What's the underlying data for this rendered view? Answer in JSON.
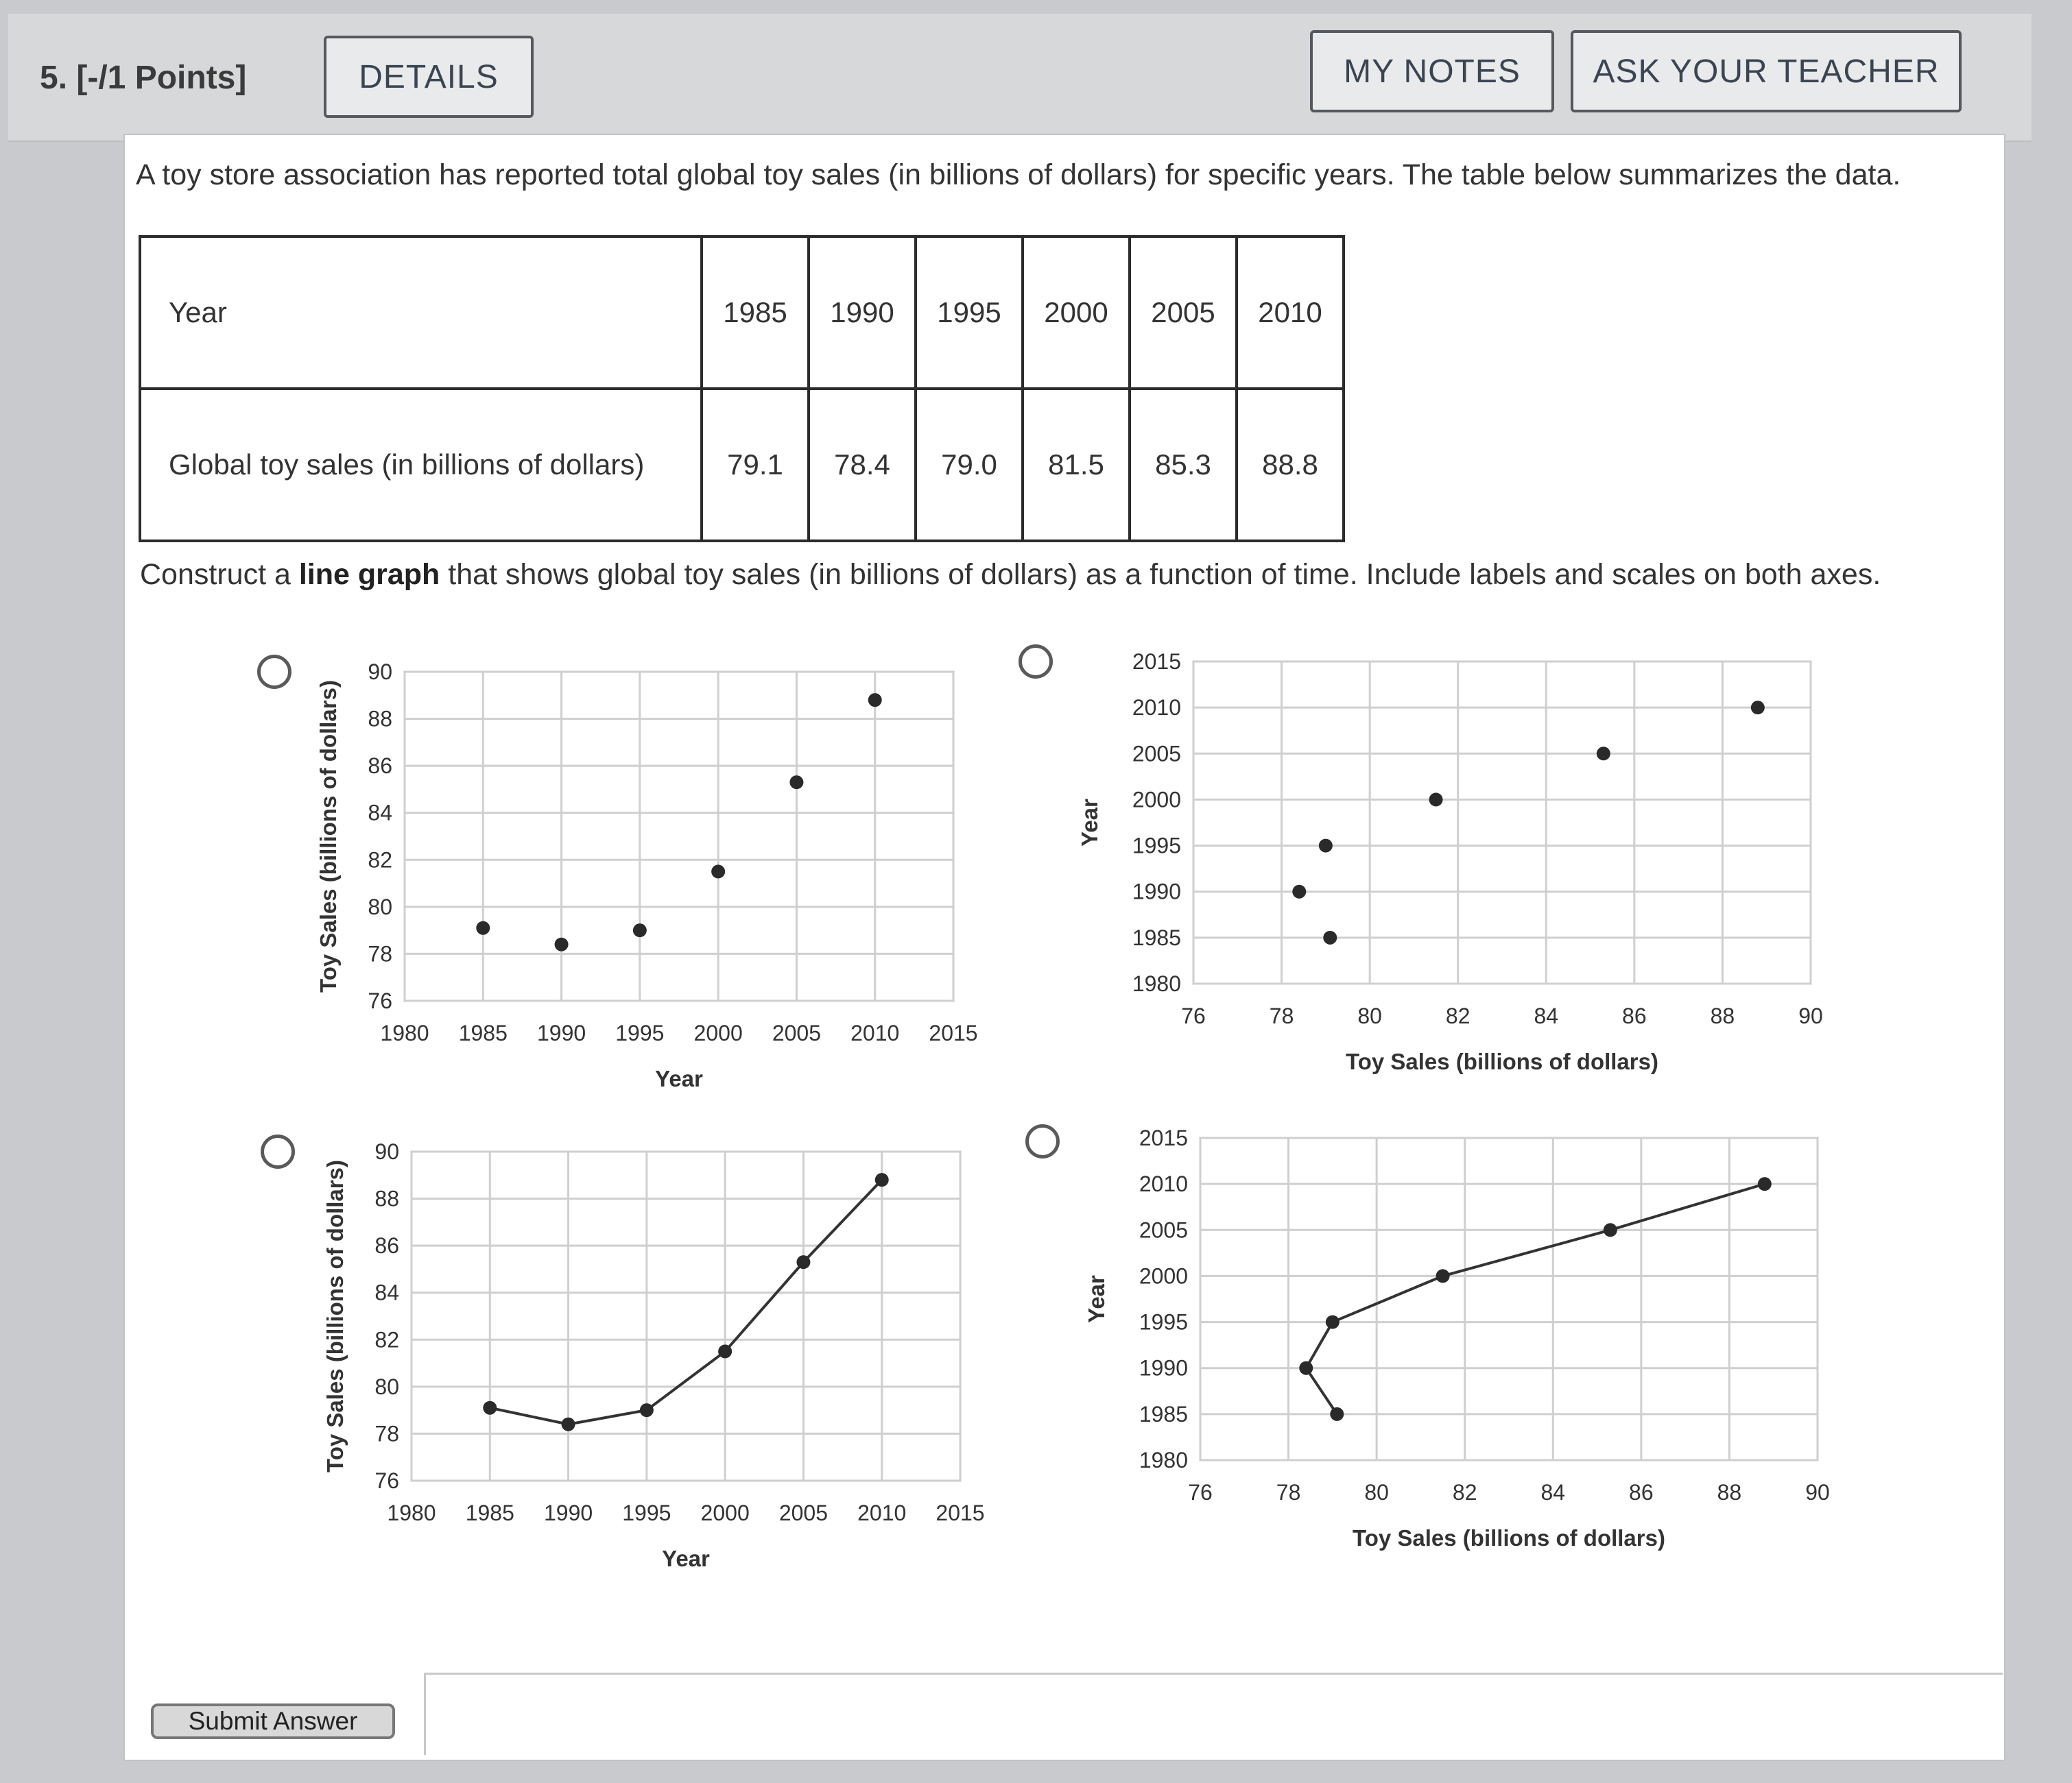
{
  "header": {
    "question": "5. [-/1 Points]",
    "details_label": "DETAILS",
    "my_notes_label": "MY NOTES",
    "ask_teacher_label": "ASK YOUR TEACHER"
  },
  "prompt": "A toy store association has reported total global toy sales (in billions of dollars) for specific years. The table below summarizes the data.",
  "table": {
    "row1_label": "Year",
    "row2_label": "Global toy sales (in billions of dollars)",
    "years": [
      "1985",
      "1990",
      "1995",
      "2000",
      "2005",
      "2010"
    ],
    "sales": [
      "79.1",
      "78.4",
      "79.0",
      "81.5",
      "85.3",
      "88.8"
    ]
  },
  "instruction": {
    "before": "Construct a ",
    "bold": "line graph",
    "after": " that shows global toy sales (in billions of dollars) as a function of time. Include labels and scales on both axes."
  },
  "chart_data": [
    {
      "option": "A",
      "type": "scatter",
      "xlabel": "Year",
      "ylabel": "Toy Sales (billions of dollars)",
      "xlim": [
        1980,
        2015
      ],
      "ylim": [
        76,
        90
      ],
      "xticks": [
        "1980",
        "1985",
        "1990",
        "1995",
        "2000",
        "2005",
        "2010",
        "2015"
      ],
      "yticks": [
        "76",
        "78",
        "80",
        "82",
        "84",
        "86",
        "88",
        "90"
      ],
      "x": [
        1985,
        1990,
        1995,
        2000,
        2005,
        2010
      ],
      "y": [
        79.1,
        78.4,
        79.0,
        81.5,
        85.3,
        88.8
      ],
      "grid": true
    },
    {
      "option": "B",
      "type": "scatter",
      "xlabel": "Toy Sales (billions of dollars)",
      "ylabel": "Year",
      "xlim": [
        76,
        90
      ],
      "ylim": [
        1980,
        2015
      ],
      "xticks": [
        "76",
        "78",
        "80",
        "82",
        "84",
        "86",
        "88",
        "90"
      ],
      "yticks": [
        "1980",
        "1985",
        "1990",
        "1995",
        "2000",
        "2005",
        "2010",
        "2015"
      ],
      "x": [
        79.1,
        78.4,
        79.0,
        81.5,
        85.3,
        88.8
      ],
      "y": [
        1985,
        1990,
        1995,
        2000,
        2005,
        2010
      ],
      "grid": true
    },
    {
      "option": "C",
      "type": "line",
      "xlabel": "Year",
      "ylabel": "Toy Sales (billions of dollars)",
      "xlim": [
        1980,
        2015
      ],
      "ylim": [
        76,
        90
      ],
      "xticks": [
        "1980",
        "1985",
        "1990",
        "1995",
        "2000",
        "2005",
        "2010",
        "2015"
      ],
      "yticks": [
        "76",
        "78",
        "80",
        "82",
        "84",
        "86",
        "88",
        "90"
      ],
      "x": [
        1985,
        1990,
        1995,
        2000,
        2005,
        2010
      ],
      "y": [
        79.1,
        78.4,
        79.0,
        81.5,
        85.3,
        88.8
      ],
      "grid": true
    },
    {
      "option": "D",
      "type": "line",
      "xlabel": "Toy Sales (billions of dollars)",
      "ylabel": "Year",
      "xlim": [
        76,
        90
      ],
      "ylim": [
        1980,
        2015
      ],
      "xticks": [
        "76",
        "78",
        "80",
        "82",
        "84",
        "86",
        "88",
        "90"
      ],
      "yticks": [
        "1980",
        "1985",
        "1990",
        "1995",
        "2000",
        "2005",
        "2010",
        "2015"
      ],
      "x": [
        79.1,
        78.4,
        79.0,
        81.5,
        85.3,
        88.8
      ],
      "y": [
        1985,
        1990,
        1995,
        2000,
        2005,
        2010
      ],
      "grid": true
    }
  ],
  "submit_label": "Submit Answer"
}
